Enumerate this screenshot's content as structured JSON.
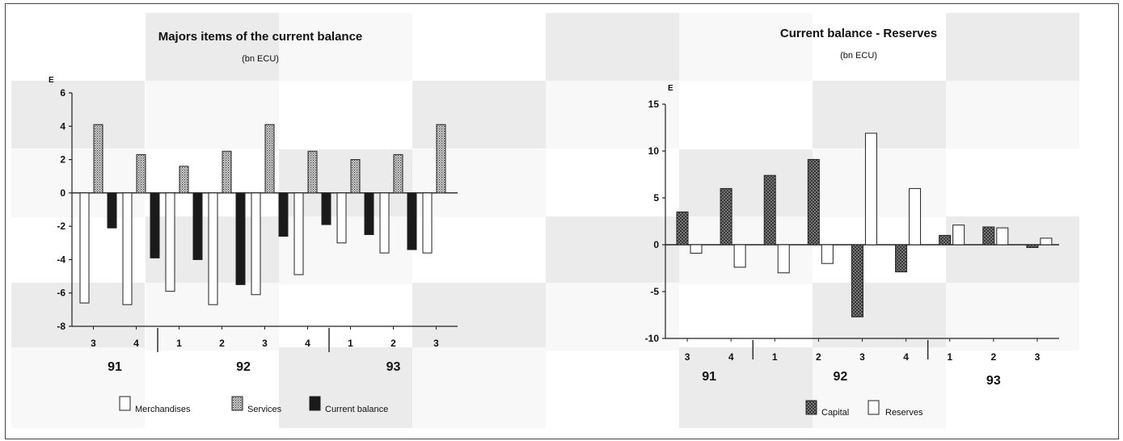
{
  "colors": {
    "background_tiles": [
      "#f4f4f4",
      "#ebebeb",
      "#f8f8f8"
    ],
    "axis": "#222222",
    "current_balance_fill": "#1a1a1a",
    "capital_fill": "#555555",
    "hatch_light": "#cfcfcf",
    "hatch_dark": "#3a3a3a"
  },
  "chart_data": [
    {
      "type": "bar",
      "title": "Majors items of the current balance",
      "subtitle": "(bn ECU)",
      "unit_label": "E",
      "ylim": [
        -8,
        6
      ],
      "yticks": [
        6,
        4,
        2,
        0,
        -2,
        -4,
        -6,
        -8
      ],
      "categories": [
        "3",
        "4",
        "1",
        "2",
        "3",
        "4",
        "1",
        "2",
        "3"
      ],
      "year_labels": [
        "91",
        "92",
        "93"
      ],
      "year_groups": [
        [
          0,
          1
        ],
        [
          2,
          5
        ],
        [
          6,
          8
        ]
      ],
      "legend_position": "bottom",
      "series": [
        {
          "name": "Merchandises",
          "pattern": "white",
          "values": [
            -6.6,
            -6.7,
            -5.9,
            -6.7,
            -6.1,
            -4.9,
            -3.0,
            -3.6,
            -3.6
          ]
        },
        {
          "name": "Services",
          "pattern": "dotted",
          "values": [
            4.1,
            2.3,
            1.6,
            2.5,
            4.1,
            2.5,
            2.0,
            2.3,
            4.1
          ]
        },
        {
          "name": "Current balance",
          "pattern": "black",
          "values": [
            -2.1,
            -3.9,
            -4.0,
            -5.5,
            -2.6,
            -1.9,
            -2.5,
            -3.4,
            null
          ]
        }
      ]
    },
    {
      "type": "bar",
      "title": "Current balance - Reserves",
      "subtitle": "(bn ECU)",
      "unit_label": "E",
      "ylim": [
        -10,
        15
      ],
      "yticks": [
        15,
        10,
        5,
        0,
        -5,
        -10
      ],
      "categories": [
        "3",
        "4",
        "1",
        "2",
        "3",
        "4",
        "1",
        "2",
        "3"
      ],
      "year_labels": [
        "91",
        "92",
        "93"
      ],
      "year_groups": [
        [
          0,
          1
        ],
        [
          2,
          5
        ],
        [
          6,
          8
        ]
      ],
      "legend_position": "bottom",
      "series": [
        {
          "name": "Capital",
          "pattern": "crosshatch",
          "values": [
            3.5,
            6.0,
            7.4,
            9.1,
            -7.7,
            -2.9,
            1.0,
            1.9,
            -0.3
          ]
        },
        {
          "name": "Reserves",
          "pattern": "white",
          "values": [
            -0.9,
            -2.4,
            -3.0,
            -2.0,
            11.9,
            6.0,
            2.1,
            1.8,
            0.7
          ]
        }
      ]
    }
  ]
}
